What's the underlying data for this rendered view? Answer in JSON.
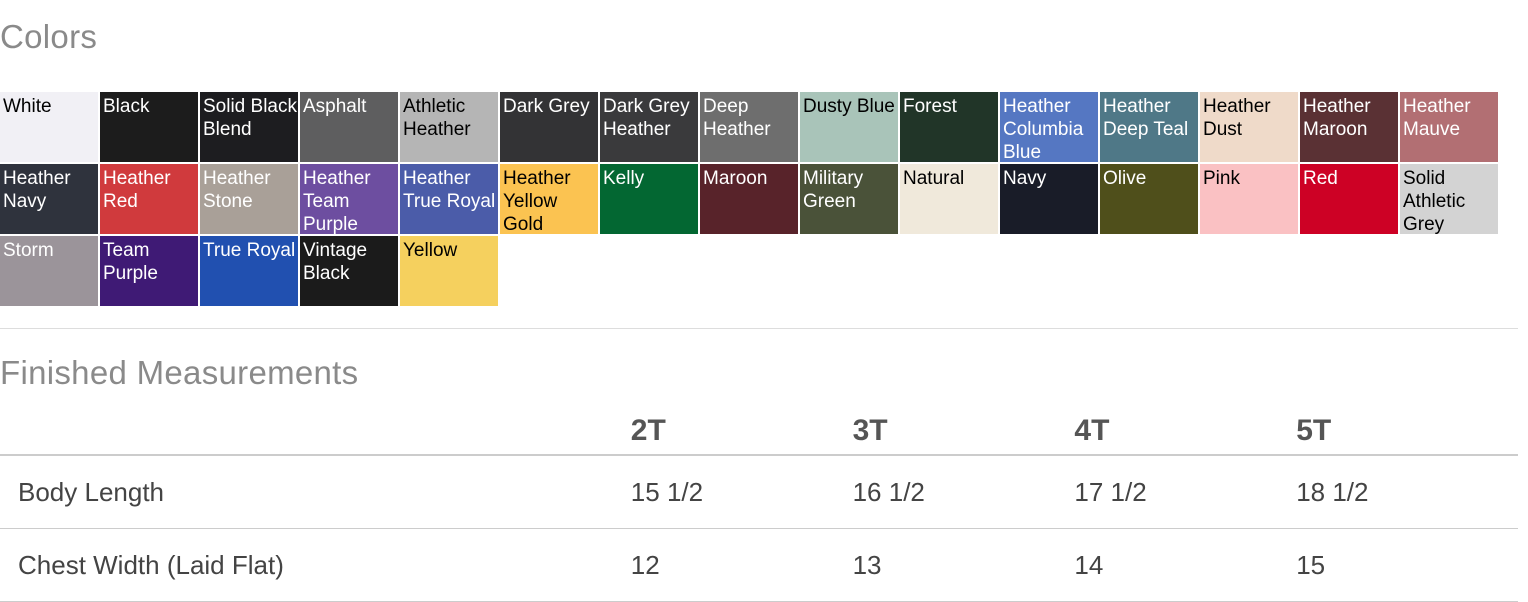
{
  "colors_title": "Colors",
  "swatches": [
    {
      "name": "White",
      "bg": "#f1f0f5",
      "fg": "#000"
    },
    {
      "name": "Black",
      "bg": "#1c1c1c",
      "fg": "#fff"
    },
    {
      "name": "Solid Black Blend",
      "bg": "#1d1d20",
      "fg": "#fff"
    },
    {
      "name": "Asphalt",
      "bg": "#5e5e5f",
      "fg": "#fff"
    },
    {
      "name": "Athletic Heather",
      "bg": "#b5b5b5",
      "fg": "#000"
    },
    {
      "name": "Dark Grey",
      "bg": "#333335",
      "fg": "#fff"
    },
    {
      "name": "Dark Grey Heather",
      "bg": "#3a3a3c",
      "fg": "#fff"
    },
    {
      "name": "Deep Heather",
      "bg": "#6e6e6e",
      "fg": "#fff"
    },
    {
      "name": "Dusty Blue",
      "bg": "#a9c4b9",
      "fg": "#000"
    },
    {
      "name": "Forest",
      "bg": "#213528",
      "fg": "#fff"
    },
    {
      "name": "Heather Columbia Blue",
      "bg": "#5577c2",
      "fg": "#fff"
    },
    {
      "name": "Heather Deep Teal",
      "bg": "#4f7887",
      "fg": "#fff"
    },
    {
      "name": "Heather Dust",
      "bg": "#efdac9",
      "fg": "#000"
    },
    {
      "name": "Heather Maroon",
      "bg": "#5a3134",
      "fg": "#fff"
    },
    {
      "name": "Heather Mauve",
      "bg": "#b26f73",
      "fg": "#fff"
    },
    {
      "name": "Heather Navy",
      "bg": "#2f333d",
      "fg": "#fff"
    },
    {
      "name": "Heather Red",
      "bg": "#d03a3d",
      "fg": "#fff"
    },
    {
      "name": "Heather Stone",
      "bg": "#a9a098",
      "fg": "#fff"
    },
    {
      "name": "Heather Team Purple",
      "bg": "#6d4ea0",
      "fg": "#fff"
    },
    {
      "name": "Heather True Royal",
      "bg": "#4b5ca9",
      "fg": "#fff"
    },
    {
      "name": "Heather Yellow Gold",
      "bg": "#fbc351",
      "fg": "#000"
    },
    {
      "name": "Kelly",
      "bg": "#036732",
      "fg": "#fff"
    },
    {
      "name": "Maroon",
      "bg": "#58232a",
      "fg": "#fff"
    },
    {
      "name": "Military Green",
      "bg": "#4a5239",
      "fg": "#fff"
    },
    {
      "name": "Natural",
      "bg": "#f0e9db",
      "fg": "#000"
    },
    {
      "name": "Navy",
      "bg": "#191c28",
      "fg": "#fff"
    },
    {
      "name": "Olive",
      "bg": "#4f4f1b",
      "fg": "#fff"
    },
    {
      "name": "Pink",
      "bg": "#fac1c3",
      "fg": "#000"
    },
    {
      "name": "Red",
      "bg": "#cd0125",
      "fg": "#fff"
    },
    {
      "name": "Solid Athletic Grey",
      "bg": "#d3d3d3",
      "fg": "#000"
    },
    {
      "name": "Storm",
      "bg": "#9b949a",
      "fg": "#fff"
    },
    {
      "name": "Team Purple",
      "bg": "#3f1a75",
      "fg": "#fff"
    },
    {
      "name": "True Royal",
      "bg": "#2150b0",
      "fg": "#fff"
    },
    {
      "name": "Vintage Black",
      "bg": "#1b1b1b",
      "fg": "#fff"
    },
    {
      "name": "Yellow",
      "bg": "#f5d05e",
      "fg": "#000"
    }
  ],
  "measurements_title": "Finished Measurements",
  "table": {
    "headers": [
      "",
      "2T",
      "3T",
      "4T",
      "5T"
    ],
    "rows": [
      {
        "label": "Body Length",
        "values": [
          "15 1/2",
          "16 1/2",
          "17 1/2",
          "18 1/2"
        ]
      },
      {
        "label": "Chest Width (Laid Flat)",
        "values": [
          "12",
          "13",
          "14",
          "15"
        ]
      }
    ]
  }
}
